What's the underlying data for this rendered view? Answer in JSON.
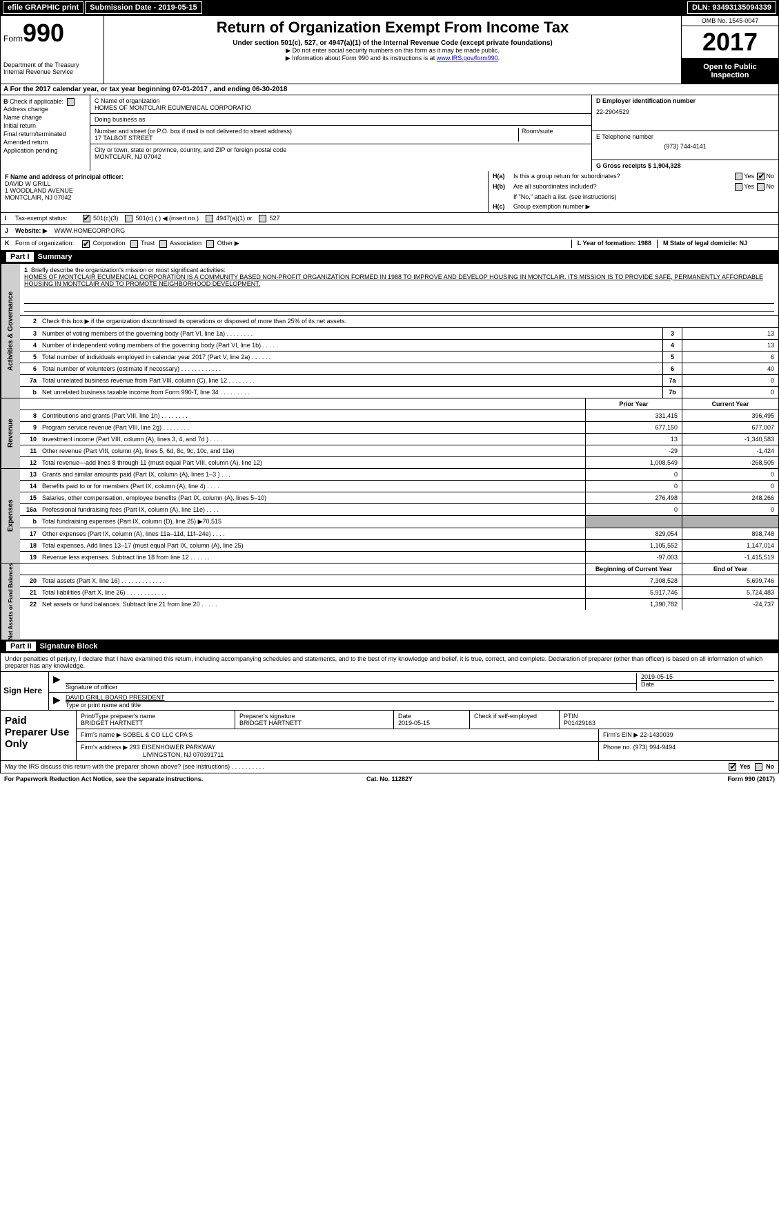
{
  "header": {
    "efile": "efile GRAPHIC print",
    "submission_label": "Submission Date - 2019-05-15",
    "dln": "DLN: 93493135094339"
  },
  "formtop": {
    "form_prefix": "Form",
    "form_number": "990",
    "dept1": "Department of the Treasury",
    "dept2": "Internal Revenue Service",
    "title": "Return of Organization Exempt From Income Tax",
    "subtitle": "Under section 501(c), 527, or 4947(a)(1) of the Internal Revenue Code (except private foundations)",
    "note1": "▶ Do not enter social security numbers on this form as it may be made public.",
    "note2a": "▶ Information about Form 990 and its instructions is at ",
    "note2_link": "www.IRS.gov/form990",
    "note2b": ".",
    "omb": "OMB No. 1545-0047",
    "year": "2017",
    "open1": "Open to Public",
    "open2": "Inspection"
  },
  "rowA": "A   For the 2017 calendar year, or tax year beginning 07-01-2017      , and ending 06-30-2018",
  "colB": {
    "hdr": "B",
    "chk_label": "Check if applicable:",
    "items": [
      "Address change",
      "Name change",
      "Initial return",
      "Final return/terminated",
      "Amended return",
      "Application pending"
    ]
  },
  "colC": {
    "name_label": "C Name of organization",
    "name": "HOMES OF MONTCLAIR ECUMENICAL CORPORATIO",
    "dba_label": "Doing business as",
    "dba": "",
    "addr_label": "Number and street (or P.O. box if mail is not delivered to street address)",
    "room_label": "Room/suite",
    "addr": "17 TALBOT STREET",
    "city_label": "City or town, state or province, country, and ZIP or foreign postal code",
    "city": "MONTCLAIR, NJ  07042",
    "f_label": "F  Name and address of principal officer:",
    "f_name": "DAVID W GRILL",
    "f_addr1": "1 WOODLAND AVENUE",
    "f_addr2": "MONTCLAIR, NJ  07042"
  },
  "colD": {
    "ein_label": "D Employer identification number",
    "ein": "22-2904529",
    "phone_label": "E Telephone number",
    "phone": "(973) 744-4141",
    "gross_label": "G Gross receipts $ 1,904,328"
  },
  "rowH": {
    "ha_lab": "H(a)",
    "ha_txt": "Is this a group return for subordinates?",
    "ha_yes": "Yes",
    "ha_no": "No",
    "hb_lab": "H(b)",
    "hb_txt": "Are all subordinates included?",
    "hb_note": "If \"No,\" attach a list. (see instructions)",
    "hc_lab": "H(c)",
    "hc_txt": "Group exemption number ▶"
  },
  "rowI": {
    "lab": "I",
    "txt": "Tax-exempt status:",
    "o1": "501(c)(3)",
    "o2": "501(c) (   ) ◀ (insert no.)",
    "o3": "4947(a)(1) or",
    "o4": "527"
  },
  "rowJ": {
    "lab": "J",
    "txt": "Website: ▶",
    "val": "WWW.HOMECORP.ORG"
  },
  "rowK": {
    "lab": "K",
    "txt": "Form of organization:",
    "o1": "Corporation",
    "o2": "Trust",
    "o3": "Association",
    "o4": "Other ▶",
    "l_label": "L Year of formation: 1988",
    "m_label": "M State of legal domicile: NJ"
  },
  "partI": {
    "hdr_num": "Part I",
    "hdr_txt": "Summary"
  },
  "summary": {
    "q1_label": "1",
    "q1_txt": "Briefly describe the organization's mission or most significant activities:",
    "q1_body": "HOMES OF MONTCLAIR ECUMENCIAL CORPORATION IS A COMMUNITY BASED NON-PROFIT ORGANIZATION FORMED IN 1988 TO IMPROVE AND DEVELOP HOUSING IN MONTCLAIR. ITS MISSION IS TO PROVIDE SAFE, PERMANENTLY AFFORDABLE HOUSING IN MONTCLAIR AND TO PROMOTE NEIGHBORHOOD DEVELOPMENT.",
    "q2_label": "2",
    "q2_txt": "Check this box ▶        if the organization discontinued its operations or disposed of more than 25% of its net assets.",
    "rows_single": [
      {
        "n": "3",
        "d": "Number of voting members of the governing body (Part VI, line 1a)   .    .    .    .    .    .    .    .",
        "box": "3",
        "v": "13"
      },
      {
        "n": "4",
        "d": "Number of independent voting members of the governing body (Part VI, line 1b)   .    .    .    .    .",
        "box": "4",
        "v": "13"
      },
      {
        "n": "5",
        "d": "Total number of individuals employed in calendar year 2017 (Part V, line 2a)   .    .    .    .    .    .",
        "box": "5",
        "v": "6"
      },
      {
        "n": "6",
        "d": "Total number of volunteers (estimate if necessary)   .    .    .    .    .    .    .    .    .    .    .    .",
        "box": "6",
        "v": "40"
      },
      {
        "n": "7a",
        "d": "Total unrelated business revenue from Part VIII, column (C), line 12   .    .    .    .    .    .    .    .",
        "box": "7a",
        "v": "0"
      },
      {
        "n": "b",
        "d": "Net unrelated business taxable income from Form 990-T, line 34   .    .    .    .    .    .    .    .    .",
        "box": "7b",
        "v": "0"
      }
    ],
    "col_hdr_prior": "Prior Year",
    "col_hdr_curr": "Current Year",
    "revenue": [
      {
        "n": "8",
        "d": "Contributions and grants (Part VIII, line 1h)   .    .    .    .    .    .    .    .",
        "p": "331,415",
        "c": "396,495"
      },
      {
        "n": "9",
        "d": "Program service revenue (Part VIII, line 2g)   .    .    .    .    .    .    .    .",
        "p": "677,150",
        "c": "677,007"
      },
      {
        "n": "10",
        "d": "Investment income (Part VIII, column (A), lines 3, 4, and 7d )   .    .    .    .",
        "p": "13",
        "c": "-1,340,583"
      },
      {
        "n": "11",
        "d": "Other revenue (Part VIII, column (A), lines 5, 6d, 8c, 9c, 10c, and 11e)",
        "p": "-29",
        "c": "-1,424"
      },
      {
        "n": "12",
        "d": "Total revenue—add lines 8 through 11 (must equal Part VIII, column (A), line 12)",
        "p": "1,008,549",
        "c": "-268,505"
      }
    ],
    "expenses": [
      {
        "n": "13",
        "d": "Grants and similar amounts paid (Part IX, column (A), lines 1–3 )   .    .    .",
        "p": "0",
        "c": "0"
      },
      {
        "n": "14",
        "d": "Benefits paid to or for members (Part IX, column (A), line 4)   .    .    .    .",
        "p": "0",
        "c": "0"
      },
      {
        "n": "15",
        "d": "Salaries, other compensation, employee benefits (Part IX, column (A), lines 5–10)",
        "p": "276,498",
        "c": "248,266"
      },
      {
        "n": "16a",
        "d": "Professional fundraising fees (Part IX, column (A), line 11e)   .    .    .    .",
        "p": "0",
        "c": "0"
      },
      {
        "n": "b",
        "d": "Total fundraising expenses (Part IX, column (D), line 25) ▶70,515",
        "p": "",
        "c": "",
        "grey": true
      },
      {
        "n": "17",
        "d": "Other expenses (Part IX, column (A), lines 11a–11d, 11f–24e)   .    .    .    .",
        "p": "829,054",
        "c": "898,748"
      },
      {
        "n": "18",
        "d": "Total expenses. Add lines 13–17 (must equal Part IX, column (A), line 25)",
        "p": "1,105,552",
        "c": "1,147,014"
      },
      {
        "n": "19",
        "d": "Revenue less expenses. Subtract line 18 from line 12   .    .    .    .    .    .",
        "p": "-97,003",
        "c": "-1,415,519"
      }
    ],
    "col_hdr_beg": "Beginning of Current Year",
    "col_hdr_end": "End of Year",
    "netassets": [
      {
        "n": "20",
        "d": "Total assets (Part X, line 16)   .    .    .    .    .    .    .    .    .    .    .    .    .",
        "p": "7,308,528",
        "c": "5,699,746"
      },
      {
        "n": "21",
        "d": "Total liabilities (Part X, line 26)   .    .    .    .    .    .    .    .    .    .    .    .",
        "p": "5,917,746",
        "c": "5,724,483"
      },
      {
        "n": "22",
        "d": "Net assets or fund balances. Subtract line 21 from line 20   .    .    .    .    .",
        "p": "1,390,782",
        "c": "-24,737"
      }
    ],
    "vtab_gov": "Activities & Governance",
    "vtab_rev": "Revenue",
    "vtab_exp": "Expenses",
    "vtab_net": "Net Assets or Fund Balances"
  },
  "partII": {
    "hdr_num": "Part II",
    "hdr_txt": "Signature Block",
    "decl": "Under penalties of perjury, I declare that I have examined this return, including accompanying schedules and statements, and to the best of my knowledge and belief, it is true, correct, and complete. Declaration of preparer (other than officer) is based on all information of which preparer has any knowledge.",
    "sign_here": "Sign Here",
    "sig_officer_label": "Signature of officer",
    "sig_date": "2019-05-15",
    "sig_date_label": "Date",
    "officer_name": "DAVID GRILL  BOARD PRESIDENT",
    "officer_label": "Type or print name and title"
  },
  "paid": {
    "left": "Paid Preparer Use Only",
    "prep_name_label": "Print/Type preparer's name",
    "prep_name": "BRIDGET HARTNETT",
    "prep_sig_label": "Preparer's signature",
    "prep_sig": "BRIDGET HARTNETT",
    "date_label": "Date",
    "date": "2019-05-15",
    "check_label": "Check         if self-employed",
    "ptin_label": "PTIN",
    "ptin": "P01429163",
    "firm_name_label": "Firm's name     ▶",
    "firm_name": "SOBEL & CO LLC CPA'S",
    "firm_ein_label": "Firm's EIN ▶",
    "firm_ein": "22-1430039",
    "firm_addr_label": "Firm's address ▶",
    "firm_addr1": "293 EISENHOWER PARKWAY",
    "firm_addr2": "LIVINGSTON, NJ  070391711",
    "phone_label": "Phone no.",
    "phone": "(973) 994-9494"
  },
  "discuss": {
    "txt": "May the IRS discuss this return with the preparer shown above? (see instructions)   .    .    .    .    .    .    .    .    .    .",
    "yes": "Yes",
    "no": "No"
  },
  "footer": {
    "pra": "For Paperwork Reduction Act Notice, see the separate instructions.",
    "cat": "Cat. No. 11282Y",
    "form": "Form 990 (2017)"
  }
}
